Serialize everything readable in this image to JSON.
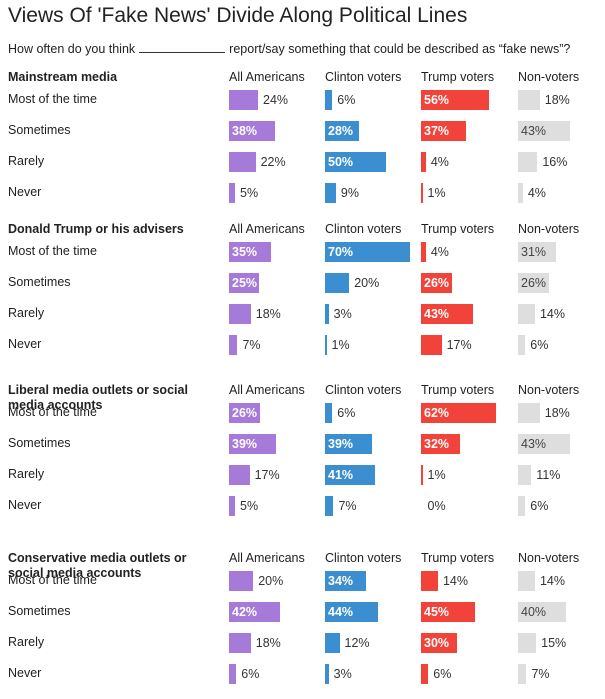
{
  "title": "Views Of 'Fake News' Divide Along Political Lines",
  "subtitle_before": "How often do you think",
  "subtitle_after": "report/say something that could be described as “fake news”?",
  "colors": {
    "All Americans": "#a67ad9",
    "Clinton voters": "#3b8fd0",
    "Trump voters": "#f2433a",
    "Non-voters": "#dedede"
  },
  "chart_data": {
    "type": "bar",
    "columns": [
      "All Americans",
      "Clinton voters",
      "Trump voters",
      "Non-voters"
    ],
    "rows": [
      "Most of the time",
      "Sometimes",
      "Rarely",
      "Never"
    ],
    "sections": [
      {
        "title": "Mainstream media",
        "values": [
          [
            24,
            6,
            56,
            18
          ],
          [
            38,
            28,
            37,
            43
          ],
          [
            22,
            50,
            4,
            16
          ],
          [
            5,
            9,
            1,
            4
          ]
        ]
      },
      {
        "title": "Donald Trump or his advisers",
        "values": [
          [
            35,
            70,
            4,
            31
          ],
          [
            25,
            20,
            26,
            26
          ],
          [
            18,
            3,
            43,
            14
          ],
          [
            7,
            1,
            17,
            6
          ]
        ]
      },
      {
        "title": "Liberal media outlets or social media accounts",
        "values": [
          [
            26,
            6,
            62,
            18
          ],
          [
            39,
            39,
            32,
            43
          ],
          [
            17,
            41,
            1,
            11
          ],
          [
            5,
            7,
            0,
            6
          ]
        ]
      },
      {
        "title": "Conservative media outlets or social media accounts",
        "values": [
          [
            20,
            34,
            14,
            14
          ],
          [
            42,
            44,
            45,
            40
          ],
          [
            18,
            12,
            30,
            15
          ],
          [
            6,
            3,
            6,
            7
          ]
        ]
      }
    ]
  }
}
